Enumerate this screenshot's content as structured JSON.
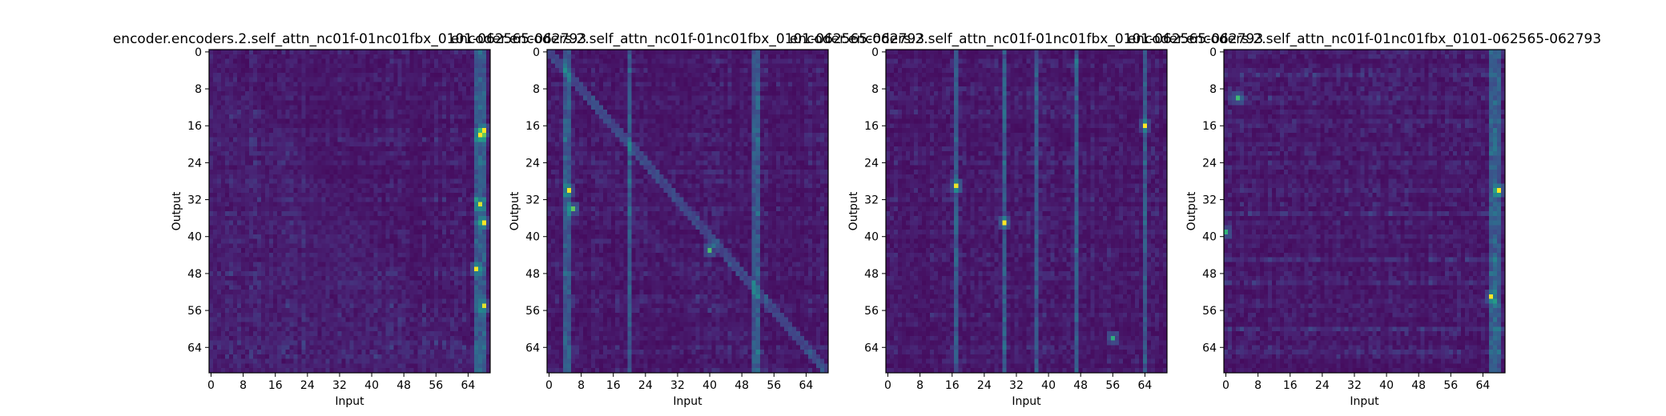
{
  "figure": {
    "background": "#ffffff",
    "colormap": "viridis"
  },
  "chart_data": [
    {
      "type": "heatmap",
      "title": "encoder.encoders.2.self_attn_nc01f-01nc01fbx_0101-062565-062793",
      "xlabel": "Input",
      "ylabel": "Output",
      "xticks": [
        "0",
        "8",
        "16",
        "24",
        "32",
        "40",
        "48",
        "56",
        "64"
      ],
      "yticks": [
        "0",
        "8",
        "16",
        "24",
        "32",
        "40",
        "48",
        "56",
        "64"
      ],
      "matrix_size": [
        70,
        70
      ],
      "x_range": [
        0,
        69
      ],
      "y_range": [
        0,
        69
      ],
      "bright_columns": [
        66,
        67,
        68
      ],
      "hotspots": [
        [
          17,
          68
        ],
        [
          18,
          67
        ],
        [
          33,
          67
        ],
        [
          37,
          68
        ],
        [
          55,
          68
        ],
        [
          47,
          66
        ]
      ],
      "pattern": "diagonal-lower"
    },
    {
      "type": "heatmap",
      "title": "encoder.encoders.2.self_attn_nc01f-01nc01fbx_0101-062565-062793",
      "xlabel": "Input",
      "ylabel": "Output",
      "xticks": [
        "0",
        "8",
        "16",
        "24",
        "32",
        "40",
        "48",
        "56",
        "64"
      ],
      "yticks": [
        "0",
        "8",
        "16",
        "24",
        "32",
        "40",
        "48",
        "56",
        "64"
      ],
      "matrix_size": [
        70,
        70
      ],
      "x_range": [
        0,
        69
      ],
      "y_range": [
        0,
        69
      ],
      "bright_columns": [
        4,
        5,
        20,
        51,
        52
      ],
      "hotspots": [
        [
          34,
          6
        ],
        [
          43,
          40
        ],
        [
          30,
          5
        ]
      ],
      "pattern": "diagonal"
    },
    {
      "type": "heatmap",
      "title": "encoder.encoders.2.self_attn_nc01f-01nc01fbx_0101-062565-062793",
      "xlabel": "Input",
      "ylabel": "Output",
      "xticks": [
        "0",
        "8",
        "16",
        "24",
        "32",
        "40",
        "48",
        "56",
        "64"
      ],
      "yticks": [
        "0",
        "8",
        "16",
        "24",
        "32",
        "40",
        "48",
        "56",
        "64"
      ],
      "matrix_size": [
        70,
        70
      ],
      "x_range": [
        0,
        69
      ],
      "y_range": [
        0,
        69
      ],
      "bright_columns": [
        17,
        29,
        37,
        47,
        64
      ],
      "hotspots": [
        [
          29,
          17
        ],
        [
          37,
          29
        ],
        [
          16,
          64
        ],
        [
          62,
          56
        ]
      ],
      "pattern": "vertical-stripes"
    },
    {
      "type": "heatmap",
      "title": "encoder.encoders.2.self_attn_nc01f-01nc01fbx_0101-062565-062793",
      "xlabel": "Input",
      "ylabel": "Output",
      "xticks": [
        "0",
        "8",
        "16",
        "24",
        "32",
        "40",
        "48",
        "56",
        "64"
      ],
      "yticks": [
        "0",
        "8",
        "16",
        "24",
        "32",
        "40",
        "48",
        "56",
        "64"
      ],
      "matrix_size": [
        70,
        70
      ],
      "x_range": [
        0,
        69
      ],
      "y_range": [
        0,
        69
      ],
      "bright_columns": [
        66,
        67,
        68
      ],
      "hotspots": [
        [
          30,
          68
        ],
        [
          53,
          66
        ],
        [
          10,
          3
        ],
        [
          39,
          0
        ]
      ],
      "pattern": "horizontal-stripes"
    }
  ]
}
